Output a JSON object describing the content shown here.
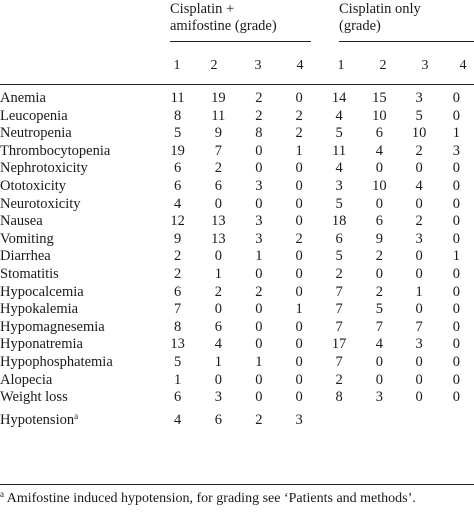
{
  "header": {
    "group1_line1": "Cisplatin +",
    "group1_line2": "amifostine (grade)",
    "group2_line1": "Cisplatin only",
    "group2_line2": "(grade)",
    "grades": [
      "1",
      "2",
      "3",
      "4",
      "1",
      "2",
      "3",
      "4"
    ]
  },
  "rows": [
    {
      "label": "Anemia",
      "values": [
        "11",
        "19",
        "2",
        "0",
        "14",
        "15",
        "3",
        "0"
      ]
    },
    {
      "label": "Leucopenia",
      "values": [
        "8",
        "11",
        "2",
        "2",
        "4",
        "10",
        "5",
        "0"
      ]
    },
    {
      "label": "Neutropenia",
      "values": [
        "5",
        "9",
        "8",
        "2",
        "5",
        "6",
        "10",
        "1"
      ]
    },
    {
      "label": "Thrombocytopenia",
      "values": [
        "19",
        "7",
        "0",
        "1",
        "11",
        "4",
        "2",
        "3"
      ]
    },
    {
      "label": "Nephrotoxicity",
      "values": [
        "6",
        "2",
        "0",
        "0",
        "4",
        "0",
        "0",
        "0"
      ]
    },
    {
      "label": "Ototoxicity",
      "values": [
        "6",
        "6",
        "3",
        "0",
        "3",
        "10",
        "4",
        "0"
      ]
    },
    {
      "label": "Neurotoxicity",
      "values": [
        "4",
        "0",
        "0",
        "0",
        "5",
        "0",
        "0",
        "0"
      ]
    },
    {
      "label": "Nausea",
      "values": [
        "12",
        "13",
        "3",
        "0",
        "18",
        "6",
        "2",
        "0"
      ]
    },
    {
      "label": "Vomiting",
      "values": [
        "9",
        "13",
        "3",
        "2",
        "6",
        "9",
        "3",
        "0"
      ]
    },
    {
      "label": "Diarrhea",
      "values": [
        "2",
        "0",
        "1",
        "0",
        "5",
        "2",
        "0",
        "1"
      ]
    },
    {
      "label": "Stomatitis",
      "values": [
        "2",
        "1",
        "0",
        "0",
        "2",
        "0",
        "0",
        "0"
      ]
    },
    {
      "label": "Hypocalcemia",
      "values": [
        "6",
        "2",
        "2",
        "0",
        "7",
        "2",
        "1",
        "0"
      ]
    },
    {
      "label": "Hypokalemia",
      "values": [
        "7",
        "0",
        "0",
        "1",
        "7",
        "5",
        "0",
        "0"
      ]
    },
    {
      "label": "Hypomagnesemia",
      "values": [
        "8",
        "6",
        "0",
        "0",
        "7",
        "7",
        "7",
        "0"
      ]
    },
    {
      "label": "Hyponatremia",
      "values": [
        "13",
        "4",
        "0",
        "0",
        "17",
        "4",
        "3",
        "0"
      ]
    },
    {
      "label": "Hypophosphatemia",
      "values": [
        "5",
        "1",
        "1",
        "0",
        "7",
        "0",
        "0",
        "0"
      ]
    },
    {
      "label": "Alopecia",
      "values": [
        "1",
        "0",
        "0",
        "0",
        "2",
        "0",
        "0",
        "0"
      ]
    },
    {
      "label": "Weight loss",
      "values": [
        "6",
        "3",
        "0",
        "0",
        "8",
        "3",
        "0",
        "0"
      ]
    }
  ],
  "hypotension": {
    "label": "Hypotension",
    "footnote_mark": "a",
    "values": [
      "4",
      "6",
      "2",
      "3",
      "",
      "",
      "",
      ""
    ]
  },
  "footnote": {
    "mark": "a",
    "text": " Amifostine induced hypotension, for grading see ‘Patients and methods’."
  }
}
